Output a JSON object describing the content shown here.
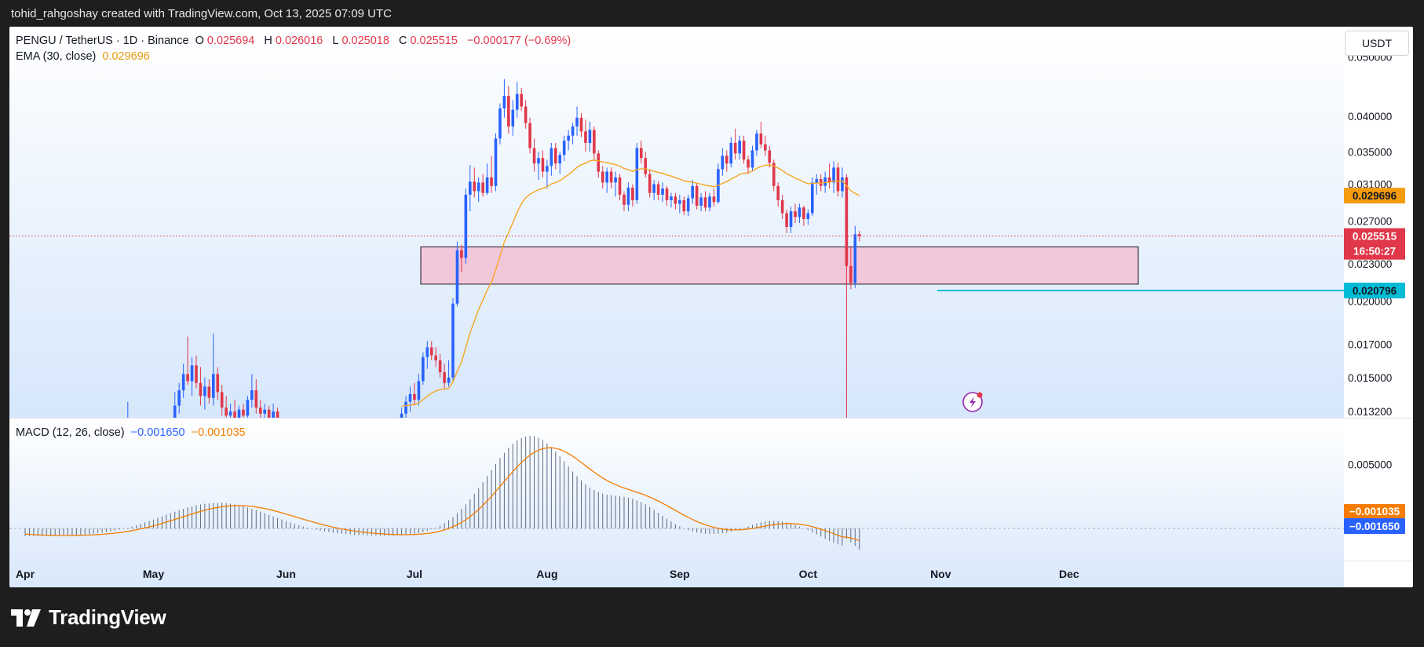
{
  "header": {
    "credit": "tohid_rahgoshay created with TradingView.com, Oct 13, 2025 07:09 UTC"
  },
  "legend": {
    "symbol": "PENGU / TetherUS · 1D · Binance",
    "o_label": "O",
    "o_value": "0.025694",
    "h_label": "H",
    "h_value": "0.026016",
    "l_label": "L",
    "l_value": "0.025018",
    "c_label": "C",
    "c_value": "0.025515",
    "change": "−0.000177 (−0.69%)",
    "ema_label": "EMA (30, close)",
    "ema_value": "0.029696",
    "macd_label": "MACD (12, 26, close)",
    "macd_value": "−0.001650",
    "signal_value": "−0.001035"
  },
  "currency_button": "USDT",
  "brand": {
    "name": "TradingView"
  },
  "colors": {
    "up": "#2962ff",
    "down": "#e0374a",
    "ema": "#f5a623",
    "zone": "#f3c2d6",
    "support": "#00bcd4",
    "macd_line": "#f57c00"
  },
  "chart_data": {
    "type": "candlestick",
    "price_axis_ticks": [
      "0.050000",
      "0.040000",
      "0.035000",
      "0.031000",
      "0.027000",
      "0.023000",
      "0.020000",
      "0.017000",
      "0.015000",
      "0.013200"
    ],
    "macd_axis_ticks": [
      "0.005000"
    ],
    "time_labels": [
      "Apr",
      "May",
      "Jun",
      "Jul",
      "Aug",
      "Sep",
      "Oct",
      "Nov",
      "Dec"
    ],
    "badges": {
      "ema": "0.029696",
      "last_price": "0.025515",
      "countdown": "16:50:27",
      "support": "0.020796",
      "macd_signal": "−0.001035",
      "macd": "−0.001650"
    },
    "last_price": 0.025515,
    "ema_last": 0.029696,
    "support_level": 0.020796,
    "zone": {
      "low": 0.0213,
      "high": 0.0245
    },
    "price_scale": "log",
    "price_range": [
      0.0129,
      0.056
    ],
    "macd_range": [
      -0.0025,
      0.0085
    ],
    "candles": [
      {
        "d": "2025-04-25",
        "o": 0.0122,
        "h": 0.0137,
        "l": 0.0115,
        "c": 0.0126
      },
      {
        "d": "2025-05-06",
        "o": 0.0128,
        "h": 0.0142,
        "l": 0.0125,
        "c": 0.0135
      },
      {
        "d": "2025-05-07",
        "o": 0.0135,
        "h": 0.0147,
        "l": 0.0131,
        "c": 0.0143
      },
      {
        "d": "2025-05-08",
        "o": 0.0143,
        "h": 0.0158,
        "l": 0.0139,
        "c": 0.0152
      },
      {
        "d": "2025-05-09",
        "o": 0.0152,
        "h": 0.0175,
        "l": 0.0146,
        "c": 0.0148
      },
      {
        "d": "2025-05-10",
        "o": 0.0148,
        "h": 0.0162,
        "l": 0.014,
        "c": 0.0157
      },
      {
        "d": "2025-05-11",
        "o": 0.0157,
        "h": 0.0163,
        "l": 0.0144,
        "c": 0.0147
      },
      {
        "d": "2025-05-12",
        "o": 0.0147,
        "h": 0.0156,
        "l": 0.0135,
        "c": 0.014
      },
      {
        "d": "2025-05-13",
        "o": 0.014,
        "h": 0.015,
        "l": 0.0133,
        "c": 0.0145
      },
      {
        "d": "2025-05-14",
        "o": 0.0145,
        "h": 0.0149,
        "l": 0.0136,
        "c": 0.0139
      },
      {
        "d": "2025-05-15",
        "o": 0.0139,
        "h": 0.0177,
        "l": 0.0135,
        "c": 0.0152
      },
      {
        "d": "2025-05-16",
        "o": 0.0152,
        "h": 0.0156,
        "l": 0.0138,
        "c": 0.0142
      },
      {
        "d": "2025-05-17",
        "o": 0.0142,
        "h": 0.0146,
        "l": 0.013,
        "c": 0.0134
      },
      {
        "d": "2025-05-18",
        "o": 0.0134,
        "h": 0.014,
        "l": 0.0126,
        "c": 0.013
      },
      {
        "d": "2025-05-19",
        "o": 0.013,
        "h": 0.0136,
        "l": 0.0124,
        "c": 0.0132
      },
      {
        "d": "2025-05-20",
        "o": 0.0132,
        "h": 0.0138,
        "l": 0.0126,
        "c": 0.0129
      },
      {
        "d": "2025-05-21",
        "o": 0.0129,
        "h": 0.0135,
        "l": 0.0125,
        "c": 0.0133
      },
      {
        "d": "2025-05-22",
        "o": 0.0133,
        "h": 0.0136,
        "l": 0.0127,
        "c": 0.013
      },
      {
        "d": "2025-05-23",
        "o": 0.013,
        "h": 0.014,
        "l": 0.0126,
        "c": 0.0138
      },
      {
        "d": "2025-05-24",
        "o": 0.0138,
        "h": 0.0152,
        "l": 0.0134,
        "c": 0.0143
      },
      {
        "d": "2025-05-25",
        "o": 0.0143,
        "h": 0.0149,
        "l": 0.0131,
        "c": 0.0134
      },
      {
        "d": "2025-05-26",
        "o": 0.0134,
        "h": 0.0138,
        "l": 0.0127,
        "c": 0.0131
      },
      {
        "d": "2025-05-27",
        "o": 0.0131,
        "h": 0.0136,
        "l": 0.0126,
        "c": 0.0133
      },
      {
        "d": "2025-05-28",
        "o": 0.0133,
        "h": 0.0135,
        "l": 0.0127,
        "c": 0.0129
      },
      {
        "d": "2025-05-29",
        "o": 0.0129,
        "h": 0.0136,
        "l": 0.0126,
        "c": 0.0132
      },
      {
        "d": "2025-05-30",
        "o": 0.0132,
        "h": 0.0134,
        "l": 0.0125,
        "c": 0.0127
      },
      {
        "d": "2025-06-28",
        "o": 0.0126,
        "h": 0.0134,
        "l": 0.0122,
        "c": 0.0131
      },
      {
        "d": "2025-06-29",
        "o": 0.0131,
        "h": 0.014,
        "l": 0.0128,
        "c": 0.0137
      },
      {
        "d": "2025-06-30",
        "o": 0.0137,
        "h": 0.0145,
        "l": 0.0132,
        "c": 0.0141
      },
      {
        "d": "2025-07-01",
        "o": 0.0141,
        "h": 0.0147,
        "l": 0.0135,
        "c": 0.0138
      },
      {
        "d": "2025-07-02",
        "o": 0.0138,
        "h": 0.0152,
        "l": 0.0135,
        "c": 0.0148
      },
      {
        "d": "2025-07-03",
        "o": 0.0148,
        "h": 0.0165,
        "l": 0.0146,
        "c": 0.0162
      },
      {
        "d": "2025-07-04",
        "o": 0.0162,
        "h": 0.0172,
        "l": 0.0155,
        "c": 0.0168
      },
      {
        "d": "2025-07-05",
        "o": 0.0168,
        "h": 0.0172,
        "l": 0.016,
        "c": 0.0163
      },
      {
        "d": "2025-07-06",
        "o": 0.0163,
        "h": 0.0168,
        "l": 0.0156,
        "c": 0.016
      },
      {
        "d": "2025-07-07",
        "o": 0.016,
        "h": 0.0164,
        "l": 0.015,
        "c": 0.0153
      },
      {
        "d": "2025-07-08",
        "o": 0.0153,
        "h": 0.0158,
        "l": 0.0144,
        "c": 0.0147
      },
      {
        "d": "2025-07-09",
        "o": 0.0147,
        "h": 0.016,
        "l": 0.0145,
        "c": 0.015
      },
      {
        "d": "2025-07-10",
        "o": 0.015,
        "h": 0.0202,
        "l": 0.0148,
        "c": 0.0198
      },
      {
        "d": "2025-07-11",
        "o": 0.0198,
        "h": 0.025,
        "l": 0.0196,
        "c": 0.0242
      },
      {
        "d": "2025-07-12",
        "o": 0.0242,
        "h": 0.0247,
        "l": 0.0223,
        "c": 0.0235
      },
      {
        "d": "2025-07-13",
        "o": 0.0235,
        "h": 0.0305,
        "l": 0.023,
        "c": 0.0298
      },
      {
        "d": "2025-07-14",
        "o": 0.0298,
        "h": 0.0333,
        "l": 0.028,
        "c": 0.0313
      },
      {
        "d": "2025-07-15",
        "o": 0.0313,
        "h": 0.033,
        "l": 0.0295,
        "c": 0.0302
      },
      {
        "d": "2025-07-16",
        "o": 0.0302,
        "h": 0.0318,
        "l": 0.029,
        "c": 0.0312
      },
      {
        "d": "2025-07-17",
        "o": 0.0312,
        "h": 0.0322,
        "l": 0.0296,
        "c": 0.03
      },
      {
        "d": "2025-07-18",
        "o": 0.03,
        "h": 0.0335,
        "l": 0.0298,
        "c": 0.0318
      },
      {
        "d": "2025-07-19",
        "o": 0.0318,
        "h": 0.0345,
        "l": 0.03,
        "c": 0.0308
      },
      {
        "d": "2025-07-20",
        "o": 0.0308,
        "h": 0.0375,
        "l": 0.0302,
        "c": 0.0368
      },
      {
        "d": "2025-07-21",
        "o": 0.0368,
        "h": 0.042,
        "l": 0.036,
        "c": 0.0412
      },
      {
        "d": "2025-07-22",
        "o": 0.0412,
        "h": 0.046,
        "l": 0.0398,
        "c": 0.0432
      },
      {
        "d": "2025-07-23",
        "o": 0.0432,
        "h": 0.0448,
        "l": 0.0375,
        "c": 0.0385
      },
      {
        "d": "2025-07-24",
        "o": 0.0385,
        "h": 0.0425,
        "l": 0.0372,
        "c": 0.041
      },
      {
        "d": "2025-07-25",
        "o": 0.041,
        "h": 0.0455,
        "l": 0.0398,
        "c": 0.0435
      },
      {
        "d": "2025-07-26",
        "o": 0.0435,
        "h": 0.0445,
        "l": 0.0408,
        "c": 0.0415
      },
      {
        "d": "2025-07-27",
        "o": 0.0415,
        "h": 0.0425,
        "l": 0.0382,
        "c": 0.039
      },
      {
        "d": "2025-07-28",
        "o": 0.039,
        "h": 0.0398,
        "l": 0.0348,
        "c": 0.0355
      },
      {
        "d": "2025-07-29",
        "o": 0.0355,
        "h": 0.0368,
        "l": 0.0325,
        "c": 0.0335
      },
      {
        "d": "2025-07-30",
        "o": 0.0335,
        "h": 0.035,
        "l": 0.0315,
        "c": 0.0342
      },
      {
        "d": "2025-07-31",
        "o": 0.0342,
        "h": 0.0352,
        "l": 0.0318,
        "c": 0.0325
      },
      {
        "d": "2025-08-01",
        "o": 0.0325,
        "h": 0.034,
        "l": 0.0305,
        "c": 0.0332
      },
      {
        "d": "2025-08-02",
        "o": 0.0332,
        "h": 0.0362,
        "l": 0.032,
        "c": 0.0355
      },
      {
        "d": "2025-08-03",
        "o": 0.0355,
        "h": 0.0362,
        "l": 0.0328,
        "c": 0.0335
      },
      {
        "d": "2025-08-04",
        "o": 0.0335,
        "h": 0.035,
        "l": 0.0322,
        "c": 0.0346
      },
      {
        "d": "2025-08-05",
        "o": 0.0346,
        "h": 0.0372,
        "l": 0.0338,
        "c": 0.0365
      },
      {
        "d": "2025-08-06",
        "o": 0.0365,
        "h": 0.038,
        "l": 0.0352,
        "c": 0.0372
      },
      {
        "d": "2025-08-07",
        "o": 0.0372,
        "h": 0.039,
        "l": 0.036,
        "c": 0.0385
      },
      {
        "d": "2025-08-08",
        "o": 0.0385,
        "h": 0.0415,
        "l": 0.0372,
        "c": 0.0398
      },
      {
        "d": "2025-08-09",
        "o": 0.0398,
        "h": 0.0405,
        "l": 0.037,
        "c": 0.0378
      },
      {
        "d": "2025-08-10",
        "o": 0.0378,
        "h": 0.0395,
        "l": 0.035,
        "c": 0.0362
      },
      {
        "d": "2025-08-11",
        "o": 0.0362,
        "h": 0.0392,
        "l": 0.035,
        "c": 0.038
      },
      {
        "d": "2025-08-12",
        "o": 0.038,
        "h": 0.0385,
        "l": 0.034,
        "c": 0.0348
      },
      {
        "d": "2025-08-13",
        "o": 0.0348,
        "h": 0.0352,
        "l": 0.0318,
        "c": 0.0325
      },
      {
        "d": "2025-08-14",
        "o": 0.0325,
        "h": 0.0332,
        "l": 0.0305,
        "c": 0.0312
      },
      {
        "d": "2025-08-15",
        "o": 0.0312,
        "h": 0.033,
        "l": 0.03,
        "c": 0.0325
      },
      {
        "d": "2025-08-16",
        "o": 0.0325,
        "h": 0.033,
        "l": 0.0305,
        "c": 0.0312
      },
      {
        "d": "2025-08-17",
        "o": 0.0312,
        "h": 0.0325,
        "l": 0.0296,
        "c": 0.0318
      },
      {
        "d": "2025-08-18",
        "o": 0.0318,
        "h": 0.0322,
        "l": 0.0292,
        "c": 0.0298
      },
      {
        "d": "2025-08-19",
        "o": 0.0298,
        "h": 0.0302,
        "l": 0.028,
        "c": 0.0287
      },
      {
        "d": "2025-08-20",
        "o": 0.0287,
        "h": 0.0312,
        "l": 0.028,
        "c": 0.0306
      },
      {
        "d": "2025-08-21",
        "o": 0.0306,
        "h": 0.031,
        "l": 0.0285,
        "c": 0.0292
      },
      {
        "d": "2025-08-22",
        "o": 0.0292,
        "h": 0.0362,
        "l": 0.0288,
        "c": 0.0355
      },
      {
        "d": "2025-08-23",
        "o": 0.0355,
        "h": 0.0365,
        "l": 0.0335,
        "c": 0.0342
      },
      {
        "d": "2025-08-24",
        "o": 0.0342,
        "h": 0.035,
        "l": 0.0318,
        "c": 0.0322
      },
      {
        "d": "2025-08-25",
        "o": 0.0322,
        "h": 0.0328,
        "l": 0.0295,
        "c": 0.03
      },
      {
        "d": "2025-08-26",
        "o": 0.03,
        "h": 0.0315,
        "l": 0.0292,
        "c": 0.031
      },
      {
        "d": "2025-08-27",
        "o": 0.031,
        "h": 0.0314,
        "l": 0.0292,
        "c": 0.0298
      },
      {
        "d": "2025-08-28",
        "o": 0.0298,
        "h": 0.0312,
        "l": 0.029,
        "c": 0.0305
      },
      {
        "d": "2025-08-29",
        "o": 0.0305,
        "h": 0.0308,
        "l": 0.0286,
        "c": 0.0292
      },
      {
        "d": "2025-08-30",
        "o": 0.0292,
        "h": 0.03,
        "l": 0.0284,
        "c": 0.0296
      },
      {
        "d": "2025-08-31",
        "o": 0.0296,
        "h": 0.03,
        "l": 0.0282,
        "c": 0.0288
      },
      {
        "d": "2025-09-01",
        "o": 0.0288,
        "h": 0.0298,
        "l": 0.0278,
        "c": 0.0292
      },
      {
        "d": "2025-09-02",
        "o": 0.0292,
        "h": 0.0296,
        "l": 0.0276,
        "c": 0.028
      },
      {
        "d": "2025-09-03",
        "o": 0.028,
        "h": 0.0298,
        "l": 0.0275,
        "c": 0.0294
      },
      {
        "d": "2025-09-04",
        "o": 0.0294,
        "h": 0.0315,
        "l": 0.0288,
        "c": 0.0308
      },
      {
        "d": "2025-09-05",
        "o": 0.0308,
        "h": 0.0312,
        "l": 0.0282,
        "c": 0.0286
      },
      {
        "d": "2025-09-06",
        "o": 0.0286,
        "h": 0.03,
        "l": 0.028,
        "c": 0.0295
      },
      {
        "d": "2025-09-07",
        "o": 0.0295,
        "h": 0.0302,
        "l": 0.028,
        "c": 0.0284
      },
      {
        "d": "2025-09-08",
        "o": 0.0284,
        "h": 0.03,
        "l": 0.028,
        "c": 0.0296
      },
      {
        "d": "2025-09-09",
        "o": 0.0296,
        "h": 0.0305,
        "l": 0.0285,
        "c": 0.029
      },
      {
        "d": "2025-09-10",
        "o": 0.029,
        "h": 0.0335,
        "l": 0.0288,
        "c": 0.0328
      },
      {
        "d": "2025-09-11",
        "o": 0.0328,
        "h": 0.0355,
        "l": 0.032,
        "c": 0.0345
      },
      {
        "d": "2025-09-12",
        "o": 0.0345,
        "h": 0.0352,
        "l": 0.0325,
        "c": 0.0335
      },
      {
        "d": "2025-09-13",
        "o": 0.0335,
        "h": 0.037,
        "l": 0.033,
        "c": 0.0362
      },
      {
        "d": "2025-09-14",
        "o": 0.0362,
        "h": 0.0382,
        "l": 0.034,
        "c": 0.0348
      },
      {
        "d": "2025-09-15",
        "o": 0.0348,
        "h": 0.0372,
        "l": 0.034,
        "c": 0.0365
      },
      {
        "d": "2025-09-16",
        "o": 0.0365,
        "h": 0.0372,
        "l": 0.0335,
        "c": 0.034
      },
      {
        "d": "2025-09-17",
        "o": 0.034,
        "h": 0.0345,
        "l": 0.0322,
        "c": 0.033
      },
      {
        "d": "2025-09-18",
        "o": 0.033,
        "h": 0.0358,
        "l": 0.0325,
        "c": 0.0352
      },
      {
        "d": "2025-09-19",
        "o": 0.0352,
        "h": 0.038,
        "l": 0.0345,
        "c": 0.0375
      },
      {
        "d": "2025-09-20",
        "o": 0.0375,
        "h": 0.0392,
        "l": 0.0355,
        "c": 0.036
      },
      {
        "d": "2025-09-21",
        "o": 0.036,
        "h": 0.0372,
        "l": 0.0345,
        "c": 0.0352
      },
      {
        "d": "2025-09-22",
        "o": 0.0352,
        "h": 0.0358,
        "l": 0.033,
        "c": 0.0336
      },
      {
        "d": "2025-09-23",
        "o": 0.0336,
        "h": 0.034,
        "l": 0.0302,
        "c": 0.0308
      },
      {
        "d": "2025-09-24",
        "o": 0.0308,
        "h": 0.0312,
        "l": 0.0285,
        "c": 0.0292
      },
      {
        "d": "2025-09-25",
        "o": 0.0292,
        "h": 0.0298,
        "l": 0.0272,
        "c": 0.0278
      },
      {
        "d": "2025-09-26",
        "o": 0.0278,
        "h": 0.0282,
        "l": 0.0258,
        "c": 0.0264
      },
      {
        "d": "2025-09-27",
        "o": 0.0264,
        "h": 0.0285,
        "l": 0.0258,
        "c": 0.028
      },
      {
        "d": "2025-09-28",
        "o": 0.028,
        "h": 0.0288,
        "l": 0.0268,
        "c": 0.0274
      },
      {
        "d": "2025-09-29",
        "o": 0.0274,
        "h": 0.0288,
        "l": 0.0268,
        "c": 0.0284
      },
      {
        "d": "2025-09-30",
        "o": 0.0284,
        "h": 0.0286,
        "l": 0.0265,
        "c": 0.0272
      },
      {
        "d": "2025-10-01",
        "o": 0.0272,
        "h": 0.0282,
        "l": 0.0266,
        "c": 0.0278
      },
      {
        "d": "2025-10-02",
        "o": 0.0278,
        "h": 0.0318,
        "l": 0.0275,
        "c": 0.0312
      },
      {
        "d": "2025-10-03",
        "o": 0.0312,
        "h": 0.0322,
        "l": 0.0298,
        "c": 0.0316
      },
      {
        "d": "2025-10-04",
        "o": 0.0316,
        "h": 0.0322,
        "l": 0.0302,
        "c": 0.0308
      },
      {
        "d": "2025-10-05",
        "o": 0.0308,
        "h": 0.0325,
        "l": 0.03,
        "c": 0.0318
      },
      {
        "d": "2025-10-06",
        "o": 0.0318,
        "h": 0.0335,
        "l": 0.0305,
        "c": 0.0312
      },
      {
        "d": "2025-10-07",
        "o": 0.0312,
        "h": 0.0338,
        "l": 0.03,
        "c": 0.033
      },
      {
        "d": "2025-10-08",
        "o": 0.033,
        "h": 0.0336,
        "l": 0.0296,
        "c": 0.0302
      },
      {
        "d": "2025-10-09",
        "o": 0.0302,
        "h": 0.033,
        "l": 0.0295,
        "c": 0.0318
      },
      {
        "d": "2025-10-10",
        "o": 0.0318,
        "h": 0.0322,
        "l": 0.0084,
        "c": 0.0228
      },
      {
        "d": "2025-10-11",
        "o": 0.0228,
        "h": 0.0245,
        "l": 0.0209,
        "c": 0.0214
      },
      {
        "d": "2025-10-12",
        "o": 0.0214,
        "h": 0.0265,
        "l": 0.021,
        "c": 0.0257
      },
      {
        "d": "2025-10-13",
        "o": 0.025694,
        "h": 0.026016,
        "l": 0.025018,
        "c": 0.025515
      }
    ]
  }
}
